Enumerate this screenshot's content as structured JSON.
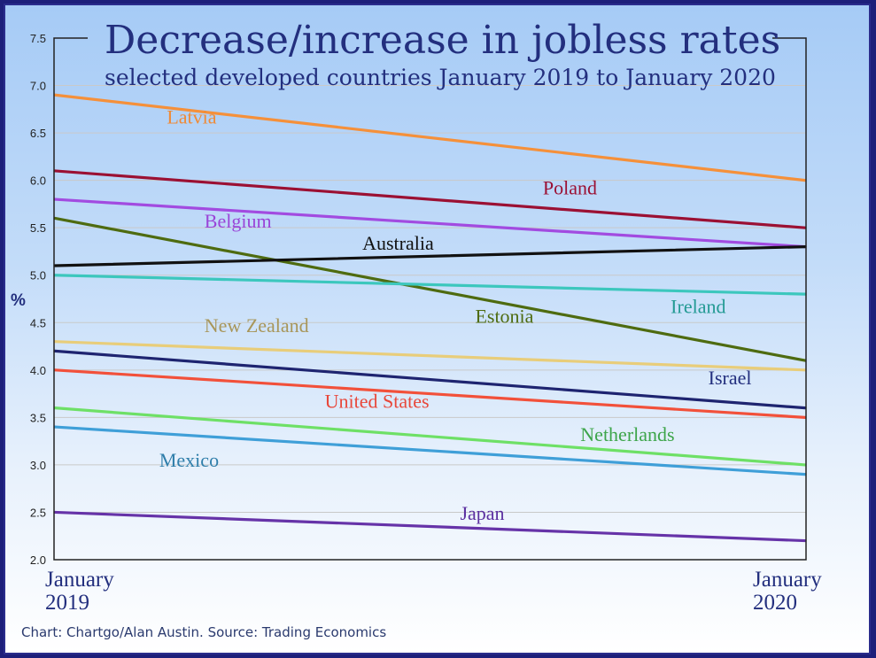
{
  "chart_data": {
    "type": "line",
    "title": "Decrease/increase in jobless rates",
    "subtitle": "selected developed countries January 2019 to January 2020",
    "ylabel": "%",
    "ylim": [
      2.0,
      7.5
    ],
    "yticks": [
      "7.5",
      "7.0",
      "6.5",
      "6.0",
      "5.5",
      "5.0",
      "4.5",
      "4.0",
      "3.5",
      "3.0",
      "2.5",
      "2.0"
    ],
    "ytick_values": [
      7.5,
      7.0,
      6.5,
      6.0,
      5.5,
      5.0,
      4.5,
      4.0,
      3.5,
      3.0,
      2.5,
      2.0
    ],
    "x": [
      {
        "line1": "January",
        "line2": "2019"
      },
      {
        "line1": "January",
        "line2": "2020"
      }
    ],
    "grid": true,
    "series": [
      {
        "name": "Latvia",
        "values": [
          6.9,
          6.0
        ],
        "color": "#f5903a",
        "label_pos": [
          0.15,
          6.6
        ],
        "label_color": "#ef8a36"
      },
      {
        "name": "Poland",
        "values": [
          6.1,
          5.5
        ],
        "color": "#9b1033",
        "label_pos": [
          0.65,
          5.85
        ],
        "label_color": "#9b1033"
      },
      {
        "name": "Belgium",
        "values": [
          5.8,
          5.3
        ],
        "color": "#a24be0",
        "label_pos": [
          0.2,
          5.5
        ],
        "label_color": "#9a45d8"
      },
      {
        "name": "Estonia",
        "values": [
          5.6,
          4.1
        ],
        "color": "#4e6b10",
        "label_pos": [
          0.56,
          4.5
        ],
        "label_color": "#4e6b10"
      },
      {
        "name": "Australia",
        "values": [
          5.1,
          5.3
        ],
        "color": "#111111",
        "label_pos": [
          0.41,
          5.27
        ],
        "label_color": "#111111"
      },
      {
        "name": "Ireland",
        "values": [
          5.0,
          4.8
        ],
        "color": "#3cc7bd",
        "label_pos": [
          0.82,
          4.6
        ],
        "label_color": "#239a94"
      },
      {
        "name": "New Zealand",
        "values": [
          4.3,
          4.0
        ],
        "color": "#e8cd7a",
        "label_pos": [
          0.2,
          4.4
        ],
        "label_color": "#a8965a"
      },
      {
        "name": "Israel",
        "values": [
          4.2,
          3.6
        ],
        "color": "#1e2470",
        "label_pos": [
          0.87,
          3.85
        ],
        "label_color": "#232f7e"
      },
      {
        "name": "United States",
        "values": [
          4.0,
          3.5
        ],
        "color": "#f2503a",
        "label_pos": [
          0.36,
          3.6
        ],
        "label_color": "#e8473a"
      },
      {
        "name": "Netherlands",
        "values": [
          3.6,
          3.0
        ],
        "color": "#6ee066",
        "label_pos": [
          0.7,
          3.25
        ],
        "label_color": "#3da54a"
      },
      {
        "name": "Mexico",
        "values": [
          3.4,
          2.9
        ],
        "color": "#3f9fd8",
        "label_pos": [
          0.14,
          2.98
        ],
        "label_color": "#2f7eaa"
      },
      {
        "name": "Japan",
        "values": [
          2.5,
          2.2
        ],
        "color": "#6633a8",
        "label_pos": [
          0.54,
          2.42
        ],
        "label_color": "#5b2fa0"
      }
    ]
  },
  "footer": {
    "source": "Chart: Chartgo/Alan Austin. Source: Trading Economics"
  }
}
